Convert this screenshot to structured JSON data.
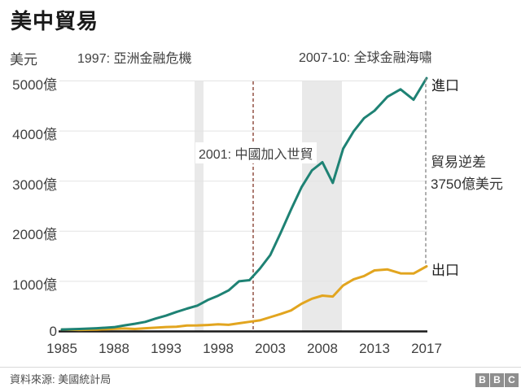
{
  "title": "美中貿易",
  "y_axis_unit": "美元",
  "annotations": {
    "asian_crisis": "1997: 亞洲金融危機",
    "global_crisis": "2007-10: 全球金融海嘯",
    "wto": "2001: 中國加入世貿",
    "deficit_line1": "貿易逆差",
    "deficit_line2": "3750億美元"
  },
  "series_labels": {
    "imports": "進口",
    "exports": "出口"
  },
  "source": "資料來源: 美國統計局",
  "logo": [
    "B",
    "B",
    "C"
  ],
  "colors": {
    "imports": "#1e8274",
    "exports": "#e2a51f",
    "wto_line": "#8a4437",
    "deficit_line": "#8c8c8c",
    "band": "#e9e9e9",
    "grid": "#e3e3e3",
    "axis": "#1a1a1a"
  },
  "chart_data": {
    "type": "line",
    "title": "美中貿易",
    "unit": "億美元",
    "ylabel": "美元",
    "ylim": [
      0,
      5200
    ],
    "grid": "horizontal",
    "x": [
      1985,
      1986,
      1987,
      1988,
      1989,
      1990,
      1991,
      1992,
      1993,
      1994,
      1995,
      1996,
      1997,
      1998,
      1999,
      2000,
      2001,
      2002,
      2003,
      2004,
      2005,
      2006,
      2007,
      2008,
      2009,
      2010,
      2011,
      2012,
      2013,
      2014,
      2015,
      2016,
      2017
    ],
    "series": [
      {
        "name": "進口",
        "values": [
          39,
          48,
          63,
          85,
          120,
          152,
          190,
          257,
          315,
          388,
          455,
          515,
          626,
          712,
          818,
          1000,
          1023,
          1252,
          1524,
          1967,
          2435,
          2878,
          3214,
          3378,
          2964,
          3649,
          3994,
          4256,
          4404,
          4685,
          4832,
          4625,
          5055
        ]
      },
      {
        "name": "出口",
        "values": [
          39,
          31,
          35,
          50,
          58,
          48,
          63,
          74,
          88,
          93,
          117,
          120,
          128,
          142,
          131,
          162,
          192,
          221,
          284,
          347,
          419,
          552,
          652,
          715,
          696,
          919,
          1041,
          1105,
          1217,
          1237,
          1159,
          1156,
          1299
        ]
      }
    ],
    "y_ticks": [
      "5000億",
      "4000億",
      "3000億",
      "2000億",
      "1000億",
      "0"
    ],
    "y_tick_values": [
      5000,
      4000,
      3000,
      2000,
      1000,
      0
    ],
    "x_ticks": [
      1985,
      1988,
      1993,
      1998,
      2003,
      2008,
      2013,
      2017
    ],
    "events": [
      {
        "label": "1997: 亞洲金融危機",
        "type": "band"
      },
      {
        "label": "2001: 中國加入世貿",
        "type": "vline",
        "year": 2001
      },
      {
        "label": "2007-10: 全球金融海嘯",
        "type": "band",
        "from": 2007,
        "to": 2010
      }
    ],
    "deficit_2017": "3750億美元"
  }
}
